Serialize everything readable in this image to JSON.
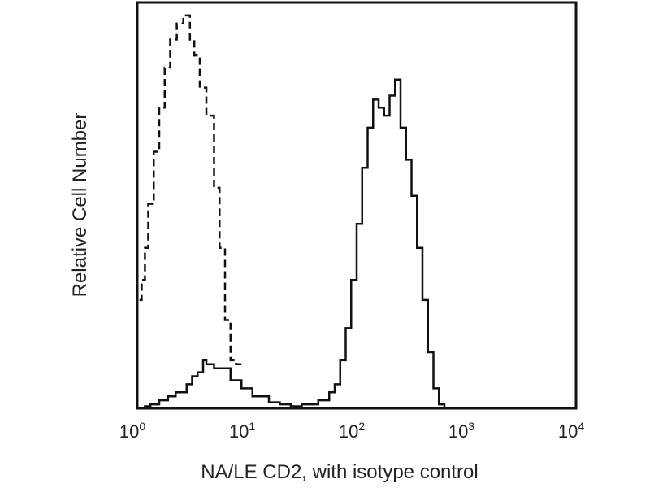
{
  "chart_data": {
    "type": "line",
    "title": "",
    "xlabel": "NA/LE CD2, with isotype control",
    "ylabel": "Relative Cell Number",
    "xscale": "log",
    "xlim_log10": [
      0,
      4
    ],
    "ylim": [
      0,
      100
    ],
    "grid": false,
    "x_ticks": [
      {
        "base": "10",
        "exp": "0"
      },
      {
        "base": "10",
        "exp": "1"
      },
      {
        "base": "10",
        "exp": "2"
      },
      {
        "base": "10",
        "exp": "3"
      },
      {
        "base": "10",
        "exp": "4"
      }
    ],
    "series": [
      {
        "name": "isotype control",
        "style": "dashed",
        "color": "#111111",
        "log10_x": [
          0.02,
          0.04,
          0.07,
          0.1,
          0.15,
          0.2,
          0.25,
          0.3,
          0.36,
          0.42,
          0.48,
          0.52,
          0.57,
          0.63,
          0.7,
          0.75,
          0.8,
          0.85,
          0.9,
          0.95
        ],
        "y": [
          27,
          32,
          40,
          51,
          64,
          75,
          85,
          92,
          96,
          98,
          92,
          88,
          80,
          73,
          55,
          40,
          22,
          12,
          11,
          11
        ]
      },
      {
        "name": "NA/LE CD2",
        "style": "solid",
        "color": "#111111",
        "log10_x": [
          0.06,
          0.12,
          0.2,
          0.28,
          0.35,
          0.45,
          0.5,
          0.55,
          0.6,
          0.63,
          0.7,
          0.75,
          0.85,
          0.95,
          1.05,
          1.2,
          1.3,
          1.4,
          1.5,
          1.65,
          1.75,
          1.8,
          1.85,
          1.9,
          1.95,
          2.0,
          2.05,
          2.1,
          2.15,
          2.2,
          2.25,
          2.3,
          2.35,
          2.4,
          2.45,
          2.5,
          2.55,
          2.6,
          2.65,
          2.7,
          2.75,
          2.8
        ],
        "y": [
          0.5,
          1,
          2,
          3,
          4,
          6,
          8,
          9,
          12,
          11,
          10,
          10,
          7,
          5,
          3,
          1.5,
          1,
          0.5,
          1,
          2,
          4,
          6,
          12,
          20,
          32,
          46,
          60,
          70,
          77,
          75,
          73,
          78,
          82,
          70,
          62,
          53,
          40,
          27,
          14,
          5,
          1,
          0
        ]
      }
    ]
  }
}
